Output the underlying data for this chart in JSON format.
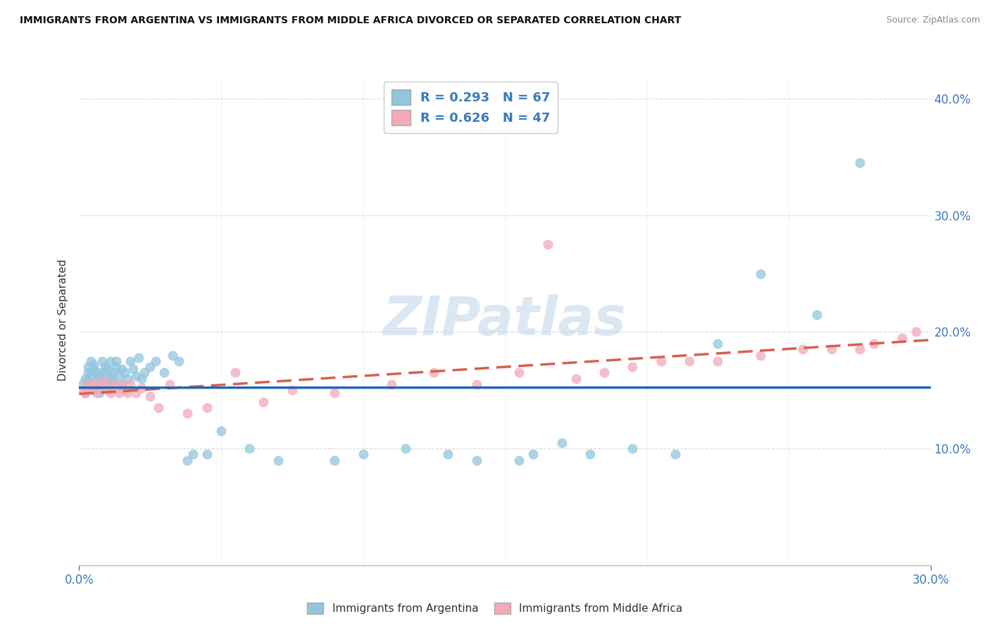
{
  "title": "IMMIGRANTS FROM ARGENTINA VS IMMIGRANTS FROM MIDDLE AFRICA DIVORCED OR SEPARATED CORRELATION CHART",
  "source": "Source: ZipAtlas.com",
  "ylabel": "Divorced or Separated",
  "xlim": [
    0.0,
    0.3
  ],
  "ylim": [
    0.0,
    0.42
  ],
  "argentina_color": "#92c5de",
  "argentina_color_line": "#2166ac",
  "middle_africa_color": "#f4a9bb",
  "middle_africa_color_line": "#d6604d",
  "R_argentina": 0.293,
  "N_argentina": 67,
  "R_middle_africa": 0.626,
  "N_middle_africa": 47,
  "legend_label_1": "Immigrants from Argentina",
  "legend_label_2": "Immigrants from Middle Africa",
  "watermark": "ZIPatlas",
  "argentina_scatter_x": [
    0.001,
    0.002,
    0.002,
    0.003,
    0.003,
    0.003,
    0.004,
    0.004,
    0.004,
    0.005,
    0.005,
    0.005,
    0.006,
    0.006,
    0.007,
    0.007,
    0.007,
    0.008,
    0.008,
    0.008,
    0.009,
    0.009,
    0.01,
    0.01,
    0.011,
    0.011,
    0.012,
    0.012,
    0.013,
    0.013,
    0.014,
    0.015,
    0.015,
    0.016,
    0.017,
    0.018,
    0.019,
    0.02,
    0.021,
    0.022,
    0.023,
    0.025,
    0.027,
    0.03,
    0.033,
    0.035,
    0.038,
    0.04,
    0.045,
    0.05,
    0.06,
    0.07,
    0.09,
    0.1,
    0.115,
    0.13,
    0.14,
    0.155,
    0.16,
    0.17,
    0.18,
    0.195,
    0.21,
    0.225,
    0.24,
    0.26,
    0.275
  ],
  "argentina_scatter_y": [
    0.155,
    0.16,
    0.148,
    0.165,
    0.158,
    0.17,
    0.162,
    0.155,
    0.175,
    0.15,
    0.168,
    0.172,
    0.158,
    0.165,
    0.155,
    0.162,
    0.148,
    0.155,
    0.165,
    0.175,
    0.162,
    0.17,
    0.155,
    0.168,
    0.162,
    0.175,
    0.165,
    0.158,
    0.17,
    0.175,
    0.162,
    0.168,
    0.155,
    0.165,
    0.16,
    0.175,
    0.168,
    0.162,
    0.178,
    0.16,
    0.165,
    0.17,
    0.175,
    0.165,
    0.18,
    0.175,
    0.09,
    0.095,
    0.095,
    0.115,
    0.1,
    0.09,
    0.09,
    0.095,
    0.1,
    0.095,
    0.09,
    0.09,
    0.095,
    0.105,
    0.095,
    0.1,
    0.095,
    0.19,
    0.25,
    0.215,
    0.345
  ],
  "middle_africa_scatter_x": [
    0.001,
    0.002,
    0.003,
    0.004,
    0.005,
    0.006,
    0.007,
    0.008,
    0.009,
    0.01,
    0.011,
    0.012,
    0.013,
    0.014,
    0.015,
    0.016,
    0.017,
    0.018,
    0.02,
    0.022,
    0.025,
    0.028,
    0.032,
    0.038,
    0.045,
    0.055,
    0.065,
    0.075,
    0.09,
    0.11,
    0.125,
    0.14,
    0.155,
    0.165,
    0.175,
    0.185,
    0.195,
    0.205,
    0.215,
    0.225,
    0.24,
    0.255,
    0.265,
    0.275,
    0.28,
    0.29,
    0.295
  ],
  "middle_africa_scatter_y": [
    0.15,
    0.148,
    0.155,
    0.152,
    0.155,
    0.148,
    0.155,
    0.152,
    0.158,
    0.15,
    0.148,
    0.155,
    0.152,
    0.148,
    0.155,
    0.15,
    0.148,
    0.155,
    0.148,
    0.152,
    0.145,
    0.135,
    0.155,
    0.13,
    0.135,
    0.165,
    0.14,
    0.15,
    0.148,
    0.155,
    0.165,
    0.155,
    0.165,
    0.275,
    0.16,
    0.165,
    0.17,
    0.175,
    0.175,
    0.175,
    0.18,
    0.185,
    0.185,
    0.185,
    0.19,
    0.195,
    0.2
  ]
}
